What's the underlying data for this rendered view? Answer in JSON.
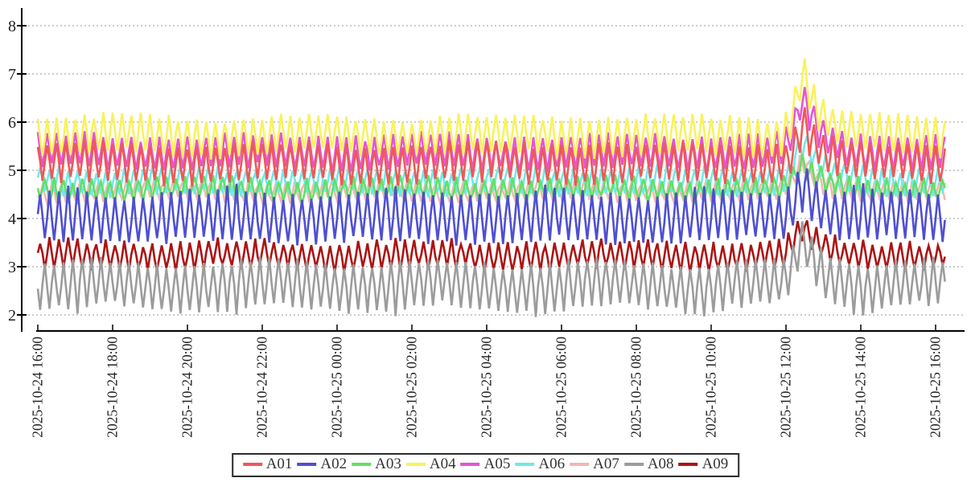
{
  "chart_data": {
    "type": "line",
    "title": "",
    "x_axis": {
      "tick_labels": [
        "2025-10-24 16:00",
        "2025-10-24 18:00",
        "2025-10-24 20:00",
        "2025-10-24 22:00",
        "2025-10-25 00:00",
        "2025-10-25 02:00",
        "2025-10-25 04:00",
        "2025-10-25 06:00",
        "2025-10-25 08:00",
        "2025-10-25 10:00",
        "2025-10-25 12:00",
        "2025-10-25 14:00",
        "2025-10-25 16:00"
      ],
      "tick_interval_minutes": 120,
      "label_rotation_deg": -90,
      "time_range_minutes": [
        0,
        1455
      ]
    },
    "y_axis": {
      "tick_labels": [
        "2",
        "3",
        "4",
        "5",
        "6",
        "7",
        "8"
      ],
      "min": 2,
      "max": 8,
      "gridlines": "dashed"
    },
    "oscillation": {
      "period_minutes": 15,
      "sample_step_minutes": 3.75
    },
    "anomaly_spike": {
      "time": "2025-10-25 ~12:30",
      "t_minutes": 1230,
      "rise_minutes": 14,
      "decay_minutes": 26,
      "max_value_reached": 7.3,
      "description": "all series jump upward briefly then decay back to normal band"
    },
    "series": [
      {
        "name": "A01",
        "color": "#ef5858",
        "base": 5.15,
        "amplitude": 0.38,
        "phase": 0.5,
        "slow_amp": 0.05,
        "slow_period": 310,
        "pulse_amp": 0,
        "pulse_period": 252,
        "pulse_phase": 0,
        "spike_boost": 0.75,
        "approx_range": [
          4.75,
          5.55
        ]
      },
      {
        "name": "A02",
        "color": "#4f4fd0",
        "base": 4.02,
        "amplitude": 0.48,
        "phase": 0.25,
        "slow_amp": 0.06,
        "slow_period": 280,
        "pulse_amp": 0.16,
        "pulse_period": 252,
        "pulse_phase": 0.02,
        "spike_boost": 0.7,
        "approx_range": [
          3.45,
          4.65
        ]
      },
      {
        "name": "A03",
        "color": "#63e063",
        "base": 4.6,
        "amplitude": 0.22,
        "phase": 0.75,
        "slow_amp": 0.04,
        "slow_period": 330,
        "pulse_amp": 0,
        "pulse_period": 252,
        "pulse_phase": 0,
        "spike_boost": 0.5,
        "approx_range": [
          4.35,
          4.85
        ]
      },
      {
        "name": "A04",
        "color": "#f9f25c",
        "base": 5.72,
        "amplitude": 0.37,
        "phase": 0.5,
        "slow_amp": 0.06,
        "slow_period": 300,
        "pulse_amp": 0,
        "pulse_period": 252,
        "pulse_phase": 0,
        "spike_boost": 1.25,
        "approx_range": [
          5.3,
          6.15
        ]
      },
      {
        "name": "A05",
        "color": "#e455d4",
        "base": 5.38,
        "amplitude": 0.32,
        "phase": 0.5,
        "slow_amp": 0.05,
        "slow_period": 290,
        "pulse_amp": 0,
        "pulse_period": 252,
        "pulse_phase": 0,
        "spike_boost": 1.05,
        "approx_range": [
          5.05,
          5.75
        ]
      },
      {
        "name": "A06",
        "color": "#6fe9e9",
        "base": 4.78,
        "amplitude": 0.25,
        "phase": 0.25,
        "slow_amp": 0.04,
        "slow_period": 260,
        "pulse_amp": 0,
        "pulse_period": 252,
        "pulse_phase": 0,
        "spike_boost": 0.8,
        "approx_range": [
          4.5,
          5.05
        ]
      },
      {
        "name": "A07",
        "color": "#f2b6b6",
        "base": 4.58,
        "amplitude": 0.18,
        "phase": 0.0,
        "slow_amp": 0.04,
        "slow_period": 320,
        "pulse_amp": 0,
        "pulse_period": 252,
        "pulse_phase": 0,
        "spike_boost": 0.55,
        "approx_range": [
          4.4,
          4.76
        ]
      },
      {
        "name": "A08",
        "color": "#9c9c9c",
        "base": 2.62,
        "amplitude": 0.45,
        "phase": 0.75,
        "slow_amp": 0.08,
        "slow_period": 270,
        "pulse_amp": -0.16,
        "pulse_period": 252,
        "pulse_phase": 0.02,
        "spike_boost": 0.9,
        "approx_range": [
          2.05,
          3.15
        ]
      },
      {
        "name": "A09",
        "color": "#ab1414",
        "base": 3.24,
        "amplitude": 0.27,
        "phase": 0.25,
        "slow_amp": 0.04,
        "slow_period": 300,
        "pulse_amp": 0,
        "pulse_period": 252,
        "pulse_phase": 0,
        "spike_boost": 0.55,
        "approx_range": [
          2.95,
          3.55
        ]
      }
    ],
    "draw_order": [
      "A09",
      "A08",
      "A07",
      "A06",
      "A05",
      "A04",
      "A03",
      "A02",
      "A01"
    ],
    "legend": {
      "position": "bottom-center",
      "bordered": true
    }
  }
}
